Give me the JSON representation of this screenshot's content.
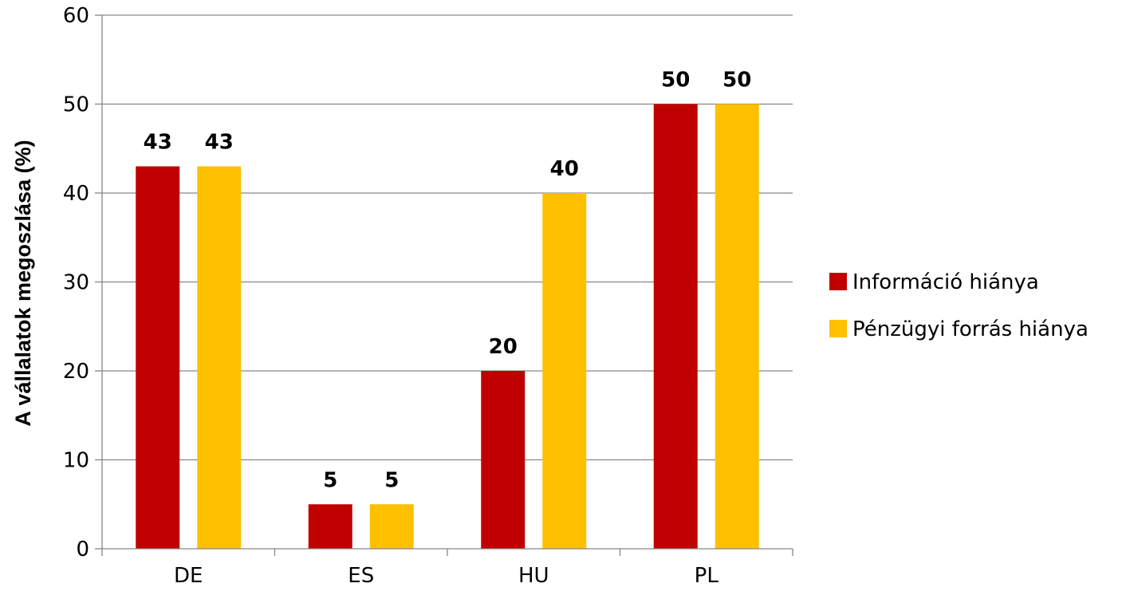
{
  "chart_data": {
    "type": "bar",
    "title": "",
    "xlabel": "",
    "ylabel": "A vállalatok megoszlása (%)",
    "categories": [
      "DE",
      "ES",
      "HU",
      "PL"
    ],
    "series": [
      {
        "name": "Információ hiánya",
        "values": [
          43,
          5,
          20,
          50
        ],
        "color": "#c00000"
      },
      {
        "name": "Pénzügyi forrás hiánya",
        "values": [
          43,
          5,
          40,
          50
        ],
        "color": "#ffc000"
      }
    ],
    "ylim": [
      0,
      60
    ],
    "yticks": [
      0,
      10,
      20,
      30,
      40,
      50,
      60
    ],
    "grid": true,
    "legend_position": "right"
  }
}
